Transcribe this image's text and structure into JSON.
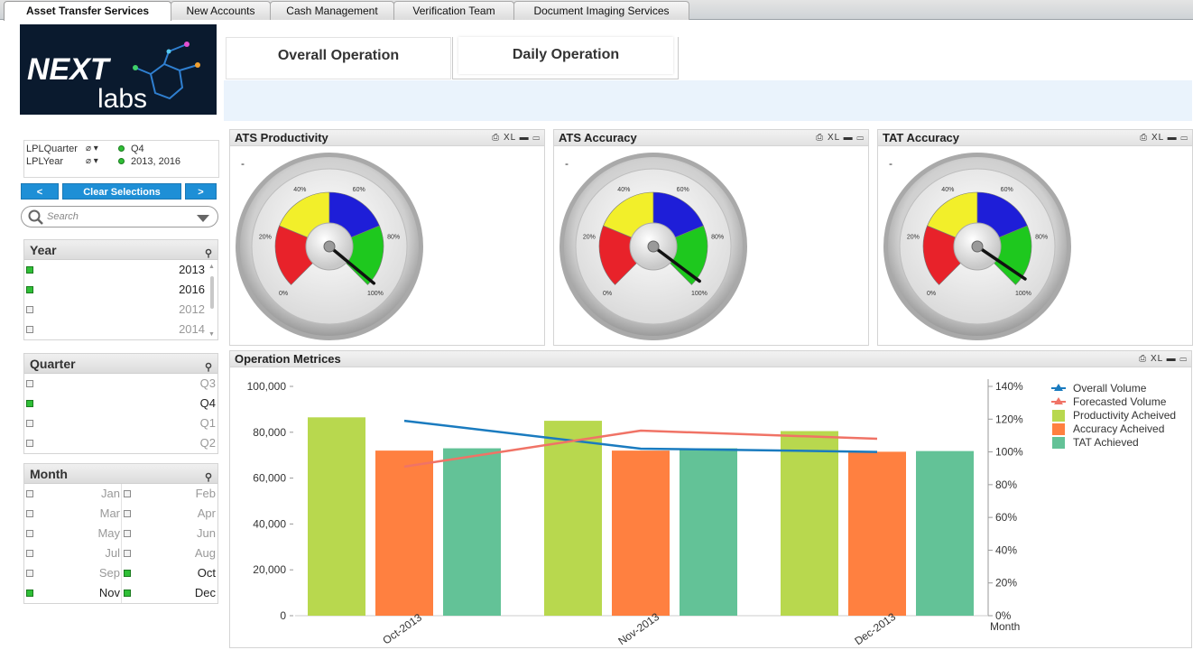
{
  "tabs": [
    "Asset Transfer Services",
    "New Accounts",
    "Cash Management",
    "Verification Team",
    "Document Imaging Services"
  ],
  "logo": {
    "line1": "NEXT",
    "line2": "labs"
  },
  "current_selections": [
    {
      "field": "LPLQuarter",
      "value": "Q4"
    },
    {
      "field": "LPLYear",
      "value": "2013, 2016"
    }
  ],
  "nav": {
    "prev": "<",
    "clear": "Clear Selections",
    "next": ">"
  },
  "search": {
    "placeholder": "Search"
  },
  "listboxes": {
    "year": {
      "title": "Year",
      "items": [
        {
          "label": "2013",
          "selected": true
        },
        {
          "label": "2016",
          "selected": true
        },
        {
          "label": "2012",
          "selected": false
        },
        {
          "label": "2014",
          "selected": false
        }
      ]
    },
    "quarter": {
      "title": "Quarter",
      "items": [
        {
          "label": "Q3",
          "selected": false
        },
        {
          "label": "Q4",
          "selected": true
        },
        {
          "label": "Q1",
          "selected": false
        },
        {
          "label": "Q2",
          "selected": false
        }
      ]
    },
    "month": {
      "title": "Month",
      "items": [
        {
          "label": "Jan",
          "selected": false
        },
        {
          "label": "Feb",
          "selected": false
        },
        {
          "label": "Mar",
          "selected": false
        },
        {
          "label": "Apr",
          "selected": false
        },
        {
          "label": "May",
          "selected": false
        },
        {
          "label": "Jun",
          "selected": false
        },
        {
          "label": "Jul",
          "selected": false
        },
        {
          "label": "Aug",
          "selected": false
        },
        {
          "label": "Sep",
          "selected": false
        },
        {
          "label": "Oct",
          "selected": true
        },
        {
          "label": "Nov",
          "selected": true
        },
        {
          "label": "Dec",
          "selected": true
        }
      ]
    }
  },
  "sheet_tabs": {
    "overall": "Overall Operation",
    "daily": "Daily Operation"
  },
  "object_tools": {
    "print": "⎙",
    "xl": "XL",
    "min": "▬",
    "max": "▭"
  },
  "gauges": [
    {
      "title": "ATS Productivity",
      "value_text": "-",
      "needle_pct": 98
    },
    {
      "title": "ATS Accuracy",
      "value_text": "-",
      "needle_pct": 97
    },
    {
      "title": "TAT Accuracy",
      "value_text": "-",
      "needle_pct": 96
    }
  ],
  "gauge_ticks": [
    "0%",
    "20%",
    "40%",
    "60%",
    "80%",
    "100%"
  ],
  "gauge_colors": {
    "red": "#e8222a",
    "yellow": "#f2ef2a",
    "blue": "#1e1ed8",
    "green": "#1ec81e"
  },
  "metrics_title": "Operation Metrices",
  "chart_data": {
    "type": "bar",
    "categories": [
      "Oct-2013",
      "Nov-2013",
      "Dec-2013"
    ],
    "xlabel": "Month",
    "ylim": [
      0,
      100000
    ],
    "y_ticks": [
      "0",
      "20,000",
      "40,000",
      "60,000",
      "80,000",
      "100,000"
    ],
    "y2lim": [
      0,
      140
    ],
    "y2_ticks": [
      "0%",
      "20%",
      "40%",
      "60%",
      "80%",
      "100%",
      "120%",
      "140%"
    ],
    "series": [
      {
        "name": "Productivity Acheived",
        "kind": "bar",
        "color": "#b8d84e",
        "values": [
          86500,
          85000,
          80500
        ]
      },
      {
        "name": "Accuracy Acheived",
        "kind": "bar",
        "color": "#ff8040",
        "values": [
          72000,
          72000,
          71500
        ]
      },
      {
        "name": "TAT Achieved",
        "kind": "bar",
        "color": "#63c297",
        "values": [
          73000,
          73000,
          71800
        ]
      },
      {
        "name": "Overall Volume",
        "kind": "line",
        "axis": "right",
        "color": "#1a7bbf",
        "values": [
          119,
          102,
          100
        ]
      },
      {
        "name": "Forecasted Volume",
        "kind": "line",
        "axis": "right",
        "color": "#f07366",
        "values": [
          91,
          113,
          108
        ]
      }
    ],
    "legend": "top-right"
  }
}
